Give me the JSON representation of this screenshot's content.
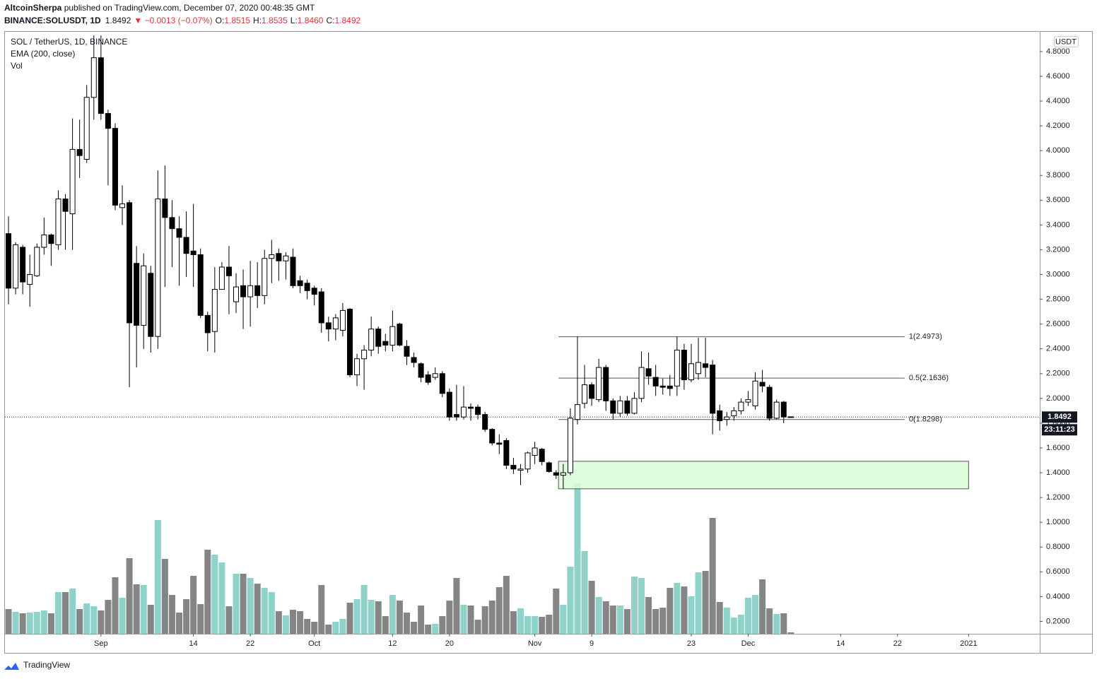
{
  "header": {
    "author": "AltcoinSherpa",
    "published": " published on TradingView.com, December 07, 2020 00:48:35 GMT",
    "symbol": "BINANCE:SOLUSDT, 1D",
    "last": "1.8492",
    "change": "▼ −0.0013 (−0.07%)",
    "ohlc": [
      {
        "label": "O:",
        "value": "1.8515"
      },
      {
        "label": "H:",
        "value": "1.8535"
      },
      {
        "label": "L:",
        "value": "1.8460"
      },
      {
        "label": "C:",
        "value": "1.8492"
      }
    ]
  },
  "footer": {
    "brand": "TradingView"
  },
  "chart_data": {
    "type": "candlestick",
    "legend": [
      "SOL / TetherUS, 1D, BINANCE",
      "EMA (200, close)",
      "Vol"
    ],
    "currency": "USDT",
    "countdown": "23:11:23",
    "last_price": 1.8492,
    "up_color": "#ffffff",
    "down_color": "#000000",
    "volume_up_color": "#8ed2c9",
    "volume_down_color": "#858585",
    "zone_color": "#d9fbd6",
    "x": [
      "2020-08-19",
      "2020-08-20",
      "2020-08-21",
      "2020-08-22",
      "2020-08-23",
      "2020-08-24",
      "2020-08-25",
      "2020-08-26",
      "2020-08-27",
      "2020-08-28",
      "2020-08-29",
      "2020-08-30",
      "2020-08-31",
      "2020-09-01",
      "2020-09-02",
      "2020-09-03",
      "2020-09-04",
      "2020-09-05",
      "2020-09-06",
      "2020-09-07",
      "2020-09-08",
      "2020-09-09",
      "2020-09-10",
      "2020-09-11",
      "2020-09-12",
      "2020-09-13",
      "2020-09-14",
      "2020-09-15",
      "2020-09-16",
      "2020-09-17",
      "2020-09-18",
      "2020-09-19",
      "2020-09-20",
      "2020-09-21",
      "2020-09-22",
      "2020-09-23",
      "2020-09-24",
      "2020-09-25",
      "2020-09-26",
      "2020-09-27",
      "2020-09-28",
      "2020-09-29",
      "2020-09-30",
      "2020-10-01",
      "2020-10-02",
      "2020-10-03",
      "2020-10-04",
      "2020-10-05",
      "2020-10-06",
      "2020-10-07",
      "2020-10-08",
      "2020-10-09",
      "2020-10-10",
      "2020-10-11",
      "2020-10-12",
      "2020-10-13",
      "2020-10-14",
      "2020-10-15",
      "2020-10-16",
      "2020-10-17",
      "2020-10-18",
      "2020-10-19",
      "2020-10-20",
      "2020-10-21",
      "2020-10-22",
      "2020-10-23",
      "2020-10-24",
      "2020-10-25",
      "2020-10-26",
      "2020-10-27",
      "2020-10-28",
      "2020-10-29",
      "2020-10-30",
      "2020-10-31",
      "2020-11-01",
      "2020-11-02",
      "2020-11-03",
      "2020-11-04",
      "2020-11-05",
      "2020-11-06",
      "2020-11-07",
      "2020-11-08",
      "2020-11-09",
      "2020-11-10",
      "2020-11-11",
      "2020-11-12",
      "2020-11-13",
      "2020-11-14",
      "2020-11-15",
      "2020-11-16",
      "2020-11-17",
      "2020-11-18",
      "2020-11-19",
      "2020-11-20",
      "2020-11-21",
      "2020-11-22",
      "2020-11-23",
      "2020-11-24",
      "2020-11-25",
      "2020-11-26",
      "2020-11-27",
      "2020-11-28",
      "2020-11-29",
      "2020-11-30",
      "2020-12-01",
      "2020-12-02",
      "2020-12-03",
      "2020-12-04",
      "2020-12-05",
      "2020-12-06",
      "2020-12-07"
    ],
    "open": [
      3.33,
      2.89,
      3.22,
      2.92,
      2.99,
      3.22,
      3.32,
      3.24,
      3.61,
      3.49,
      4.01,
      3.93,
      4.43,
      4.75,
      4.3,
      4.18,
      3.54,
      3.58,
      3.09,
      2.59,
      3.01,
      2.5,
      3.61,
      3.46,
      3.37,
      3.3,
      3.19,
      3.16,
      2.67,
      2.54,
      2.88,
      3.06,
      2.78,
      2.91,
      2.82,
      2.91,
      2.83,
      3.13,
      3.17,
      3.11,
      3.14,
      2.95,
      2.93,
      2.89,
      2.86,
      2.61,
      2.56,
      2.55,
      2.72,
      2.19,
      2.32,
      2.39,
      2.56,
      2.46,
      2.43,
      2.6,
      2.42,
      2.33,
      2.28,
      2.19,
      2.17,
      2.2,
      2.05,
      1.87,
      1.85,
      1.93,
      1.93,
      1.87,
      1.75,
      1.64,
      1.66,
      1.46,
      1.42,
      1.43,
      1.54,
      1.59,
      1.48,
      1.4,
      1.38,
      1.4,
      1.83,
      1.96,
      2.11,
      1.99,
      2.25,
      1.98,
      1.88,
      1.98,
      1.88,
      2.0,
      2.24,
      2.17,
      2.1,
      2.1,
      2.1,
      2.39,
      2.15,
      2.2,
      2.28,
      2.27,
      1.9,
      1.83,
      1.86,
      1.9,
      1.97,
      1.94,
      2.13,
      2.09,
      1.84,
      1.97,
      1.8515
    ],
    "high": [
      3.47,
      3.26,
      3.24,
      3.16,
      3.25,
      3.46,
      3.33,
      3.68,
      3.65,
      4.26,
      4.25,
      4.53,
      4.93,
      4.93,
      4.33,
      4.22,
      3.72,
      3.6,
      3.23,
      3.17,
      3.07,
      3.84,
      3.88,
      3.6,
      3.47,
      3.51,
      3.57,
      3.21,
      2.7,
      3.06,
      3.1,
      3.23,
      3.01,
      3.04,
      3.11,
      3.1,
      3.2,
      3.28,
      3.21,
      3.18,
      3.21,
      2.99,
      2.96,
      2.91,
      2.89,
      2.66,
      2.68,
      2.77,
      2.73,
      2.36,
      2.43,
      2.66,
      2.58,
      2.52,
      2.71,
      2.61,
      2.47,
      2.37,
      2.29,
      2.22,
      2.25,
      2.22,
      2.08,
      2.11,
      2.1,
      1.96,
      1.95,
      1.89,
      1.76,
      1.71,
      1.68,
      1.52,
      1.47,
      1.57,
      1.65,
      1.6,
      1.49,
      1.42,
      1.47,
      1.92,
      2.5,
      2.27,
      2.13,
      2.32,
      2.27,
      2.0,
      2.02,
      2.02,
      2.05,
      2.38,
      2.37,
      2.27,
      2.16,
      2.19,
      2.5,
      2.44,
      2.44,
      2.49,
      2.49,
      2.31,
      1.95,
      1.89,
      1.93,
      2.0,
      2.06,
      2.21,
      2.23,
      2.11,
      1.99,
      1.98,
      1.8535
    ],
    "low": [
      2.76,
      2.84,
      2.84,
      2.74,
      2.98,
      3.16,
      3.07,
      3.2,
      3.2,
      3.2,
      3.78,
      3.9,
      4.25,
      4.25,
      3.72,
      3.52,
      3.4,
      2.09,
      2.25,
      2.4,
      2.37,
      2.4,
      2.9,
      3.06,
      2.91,
      2.98,
      2.9,
      2.65,
      2.38,
      2.37,
      2.88,
      2.68,
      2.69,
      2.56,
      2.58,
      2.73,
      2.76,
      2.93,
      2.95,
      2.96,
      2.89,
      2.85,
      2.8,
      2.75,
      2.53,
      2.46,
      2.47,
      2.5,
      2.17,
      2.1,
      2.07,
      2.34,
      2.36,
      2.38,
      2.38,
      2.42,
      2.27,
      2.25,
      2.13,
      2.11,
      2.15,
      2.01,
      1.82,
      1.82,
      1.83,
      1.82,
      1.83,
      1.73,
      1.62,
      1.55,
      1.43,
      1.39,
      1.3,
      1.4,
      1.47,
      1.46,
      1.4,
      1.35,
      1.27,
      1.38,
      1.79,
      1.92,
      1.94,
      1.97,
      1.9,
      1.83,
      1.85,
      1.86,
      1.87,
      1.97,
      2.11,
      2.02,
      2.03,
      2.02,
      2.02,
      2.07,
      2.13,
      2.15,
      2.17,
      1.71,
      1.74,
      1.78,
      1.82,
      1.87,
      1.94,
      1.91,
      2.05,
      1.82,
      1.83,
      1.8,
      1.846
    ],
    "close": [
      2.89,
      3.24,
      2.94,
      3.0,
      3.22,
      3.32,
      3.25,
      3.61,
      3.51,
      4.01,
      3.96,
      4.43,
      4.75,
      4.3,
      4.18,
      3.56,
      3.57,
      2.61,
      2.59,
      3.07,
      2.5,
      3.61,
      3.46,
      3.37,
      3.3,
      3.17,
      3.16,
      2.67,
      2.53,
      2.88,
      3.06,
      2.99,
      2.9,
      2.82,
      2.91,
      2.83,
      3.13,
      3.16,
      3.11,
      3.15,
      2.91,
      2.91,
      2.87,
      2.84,
      2.61,
      2.56,
      2.65,
      2.71,
      2.19,
      2.32,
      2.39,
      2.56,
      2.42,
      2.43,
      2.58,
      2.43,
      2.34,
      2.29,
      2.17,
      2.13,
      2.2,
      2.04,
      1.85,
      1.85,
      1.93,
      1.92,
      1.87,
      1.75,
      1.64,
      1.63,
      1.46,
      1.43,
      1.43,
      1.56,
      1.6,
      1.49,
      1.41,
      1.38,
      1.4,
      1.84,
      1.95,
      2.11,
      2.0,
      2.25,
      1.98,
      1.88,
      1.98,
      1.88,
      2.0,
      2.25,
      2.18,
      2.1,
      2.09,
      2.08,
      2.39,
      2.15,
      2.28,
      2.29,
      2.25,
      1.88,
      1.82,
      1.85,
      1.9,
      1.97,
      1.99,
      2.14,
      2.1,
      1.84,
      1.97,
      1.85,
      1.8492
    ],
    "volume": [
      3.5,
      3.1,
      2.9,
      3.0,
      3.1,
      3.3,
      2.9,
      5.9,
      5.9,
      6.4,
      3.5,
      4.3,
      3.9,
      3.3,
      4.8,
      8.0,
      5.1,
      10.7,
      7.0,
      6.9,
      4.1,
      16.1,
      10.6,
      5.5,
      3.0,
      4.9,
      8.2,
      4.2,
      11.9,
      11.2,
      10.1,
      3.9,
      8.5,
      8.5,
      7.9,
      7.1,
      6.5,
      5.9,
      3.2,
      2.6,
      3.4,
      3.2,
      2.1,
      1.7,
      6.9,
      1.3,
      1.7,
      2.1,
      4.4,
      4.9,
      6.9,
      4.8,
      4.6,
      2.5,
      5.5,
      4.7,
      3.0,
      1.7,
      4.0,
      1.3,
      1.4,
      2.5,
      4.7,
      7.9,
      4.1,
      4.0,
      2.0,
      3.9,
      4.7,
      6.6,
      8.2,
      3.2,
      3.6,
      2.5,
      2.5,
      2.4,
      2.7,
      6.4,
      4.1,
      9.5,
      21.3,
      11.7,
      7.5,
      5.2,
      4.6,
      4.0,
      4.0,
      3.5,
      8.1,
      7.9,
      5.2,
      3.5,
      3.7,
      6.5,
      7.2,
      6.7,
      5.3,
      8.7,
      8.9,
      16.4,
      4.5,
      3.7,
      2.3,
      2.7,
      5.1,
      5.5,
      7.7,
      3.6,
      2.8,
      2.9,
      0.2
    ],
    "fib": {
      "x": [
        "2020-11-04T08:00:00Z",
        "2020-12-23"
      ],
      "levels": [
        {
          "price": 2.4973,
          "label": "1(2.4973)"
        },
        {
          "price": 2.1636,
          "label": "0.5(2.1636)"
        },
        {
          "price": 1.8298,
          "label": "0(1.8298)"
        }
      ]
    },
    "zone": {
      "x": [
        "2020-11-04T08:00:00Z",
        "2021-01-01"
      ],
      "y": [
        1.27,
        1.4925
      ]
    },
    "xlim": [
      "2020-08-18T12:00:00Z",
      "2021-01-11T00:00:00Z"
    ],
    "xticks": [
      {
        "value": "2020-09-01",
        "label": "Sep"
      },
      {
        "value": "2020-09-14",
        "label": "14"
      },
      {
        "value": "2020-09-22",
        "label": "22"
      },
      {
        "value": "2020-10-01",
        "label": "Oct"
      },
      {
        "value": "2020-10-12",
        "label": "12"
      },
      {
        "value": "2020-10-20",
        "label": "20"
      },
      {
        "value": "2020-11-01",
        "label": "Nov"
      },
      {
        "value": "2020-11-09",
        "label": "9"
      },
      {
        "value": "2020-11-23",
        "label": "23"
      },
      {
        "value": "2020-12-01",
        "label": "Dec"
      },
      {
        "value": "2020-12-14",
        "label": "14"
      },
      {
        "value": "2020-12-22",
        "label": "22"
      },
      {
        "value": "2021-01-01",
        "label": "2021"
      }
    ],
    "ylim": [
      0.1,
      4.965
    ],
    "yticks": [
      {
        "value": 0.2,
        "label": "0.2000"
      },
      {
        "value": 0.4,
        "label": "0.4000"
      },
      {
        "value": 0.6,
        "label": "0.6000"
      },
      {
        "value": 0.8,
        "label": "0.8000"
      },
      {
        "value": 1.0,
        "label": "1.0000"
      },
      {
        "value": 1.2,
        "label": "1.2000"
      },
      {
        "value": 1.4,
        "label": "1.4000"
      },
      {
        "value": 1.6,
        "label": "1.6000"
      },
      {
        "value": 1.8,
        "label": "1.8000"
      },
      {
        "value": 2.0,
        "label": "2.0000"
      },
      {
        "value": 2.2,
        "label": "2.2000"
      },
      {
        "value": 2.4,
        "label": "2.4000"
      },
      {
        "value": 2.6,
        "label": "2.6000"
      },
      {
        "value": 2.8,
        "label": "2.8000"
      },
      {
        "value": 3.0,
        "label": "3.0000"
      },
      {
        "value": 3.2,
        "label": "3.2000"
      },
      {
        "value": 3.4,
        "label": "3.4000"
      },
      {
        "value": 3.6,
        "label": "3.6000"
      },
      {
        "value": 3.8,
        "label": "3.8000"
      },
      {
        "value": 4.0,
        "label": "4.0000"
      },
      {
        "value": 4.2,
        "label": "4.2000"
      },
      {
        "value": 4.4,
        "label": "4.4000"
      },
      {
        "value": 4.6,
        "label": "4.6000"
      },
      {
        "value": 4.8,
        "label": "4.8000"
      }
    ],
    "grid": false
  }
}
